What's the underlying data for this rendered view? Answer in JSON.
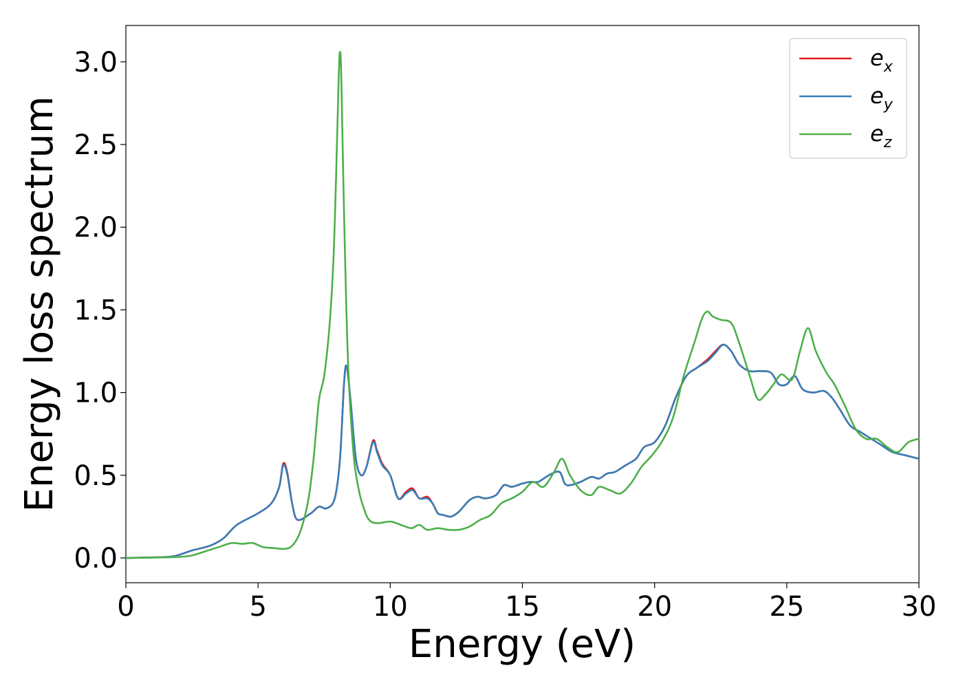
{
  "chart_data": {
    "type": "line",
    "title": "",
    "xlabel": "Energy (eV)",
    "ylabel": "Energy loss spectrum",
    "xlim": [
      0,
      30
    ],
    "ylim": [
      -0.15,
      3.22
    ],
    "xticks": [
      "0",
      "5",
      "10",
      "15",
      "20",
      "25",
      "30"
    ],
    "yticks": [
      "0.0",
      "0.5",
      "1.0",
      "1.5",
      "2.0",
      "2.5",
      "3.0"
    ],
    "grid": false,
    "legend_position": "top-right",
    "series": [
      {
        "name": "e_x",
        "legend_base": "e",
        "legend_sub": "x",
        "color": "#e41a1c",
        "x": [
          0,
          1,
          1.8,
          2.5,
          3.2,
          3.7,
          4.2,
          5,
          5.5,
          5.8,
          5.95,
          6.1,
          6.3,
          6.5,
          7,
          7.3,
          7.6,
          7.9,
          8.1,
          8.25,
          8.35,
          8.5,
          8.7,
          8.9,
          9.1,
          9.35,
          9.5,
          9.7,
          10,
          10.3,
          10.6,
          10.85,
          11.1,
          11.4,
          11.6,
          11.8,
          12,
          12.3,
          12.6,
          13,
          13.3,
          13.6,
          14,
          14.3,
          14.6,
          15,
          15.3,
          15.6,
          16,
          16.4,
          16.6,
          16.8,
          17.2,
          17.6,
          17.9,
          18.2,
          18.5,
          18.9,
          19.3,
          19.6,
          20,
          20.4,
          20.8,
          21.2,
          21.6,
          22,
          22.3,
          22.6,
          22.9,
          23.2,
          23.6,
          24,
          24.4,
          24.7,
          25,
          25.3,
          25.6,
          26,
          26.4,
          26.7,
          27,
          27.4,
          27.8,
          28.2,
          28.6,
          29,
          29.5,
          30
        ],
        "y": [
          0,
          0.003,
          0.01,
          0.045,
          0.075,
          0.12,
          0.2,
          0.27,
          0.33,
          0.43,
          0.57,
          0.52,
          0.32,
          0.23,
          0.27,
          0.31,
          0.3,
          0.36,
          0.6,
          1.05,
          1.16,
          0.95,
          0.6,
          0.5,
          0.55,
          0.71,
          0.65,
          0.57,
          0.5,
          0.36,
          0.4,
          0.42,
          0.36,
          0.37,
          0.33,
          0.27,
          0.26,
          0.25,
          0.28,
          0.35,
          0.37,
          0.36,
          0.38,
          0.44,
          0.43,
          0.45,
          0.46,
          0.46,
          0.5,
          0.52,
          0.45,
          0.44,
          0.46,
          0.49,
          0.48,
          0.51,
          0.52,
          0.56,
          0.6,
          0.67,
          0.7,
          0.8,
          0.97,
          1.1,
          1.15,
          1.2,
          1.25,
          1.29,
          1.25,
          1.17,
          1.13,
          1.13,
          1.12,
          1.05,
          1.05,
          1.1,
          1.02,
          1.0,
          1.01,
          0.97,
          0.9,
          0.8,
          0.76,
          0.72,
          0.68,
          0.64,
          0.62,
          0.6
        ]
      },
      {
        "name": "e_y",
        "legend_base": "e",
        "legend_sub": "y",
        "color": "#377eb8",
        "x": [
          0,
          1,
          1.8,
          2.5,
          3.2,
          3.7,
          4.2,
          5,
          5.5,
          5.8,
          5.95,
          6.1,
          6.3,
          6.5,
          7,
          7.3,
          7.6,
          7.9,
          8.1,
          8.25,
          8.35,
          8.5,
          8.7,
          8.9,
          9.1,
          9.35,
          9.5,
          9.7,
          10,
          10.3,
          10.6,
          10.85,
          11.1,
          11.4,
          11.6,
          11.8,
          12,
          12.3,
          12.6,
          13,
          13.3,
          13.6,
          14,
          14.3,
          14.6,
          15,
          15.3,
          15.6,
          16,
          16.4,
          16.6,
          16.8,
          17.2,
          17.6,
          17.9,
          18.2,
          18.5,
          18.9,
          19.3,
          19.6,
          20,
          20.4,
          20.8,
          21.2,
          21.6,
          22,
          22.3,
          22.6,
          22.9,
          23.2,
          23.6,
          24,
          24.4,
          24.7,
          25,
          25.3,
          25.6,
          26,
          26.4,
          26.7,
          27,
          27.4,
          27.8,
          28.2,
          28.6,
          29,
          29.5,
          30
        ],
        "y": [
          0,
          0.003,
          0.01,
          0.045,
          0.075,
          0.12,
          0.2,
          0.27,
          0.33,
          0.43,
          0.56,
          0.51,
          0.32,
          0.23,
          0.27,
          0.31,
          0.3,
          0.36,
          0.6,
          1.05,
          1.16,
          0.95,
          0.6,
          0.5,
          0.55,
          0.7,
          0.64,
          0.56,
          0.5,
          0.36,
          0.39,
          0.41,
          0.36,
          0.36,
          0.33,
          0.27,
          0.26,
          0.25,
          0.28,
          0.35,
          0.37,
          0.36,
          0.38,
          0.44,
          0.43,
          0.45,
          0.46,
          0.46,
          0.5,
          0.52,
          0.45,
          0.44,
          0.46,
          0.49,
          0.48,
          0.51,
          0.52,
          0.56,
          0.6,
          0.67,
          0.7,
          0.8,
          0.97,
          1.1,
          1.15,
          1.19,
          1.24,
          1.29,
          1.25,
          1.17,
          1.13,
          1.13,
          1.12,
          1.05,
          1.05,
          1.1,
          1.02,
          1.0,
          1.01,
          0.97,
          0.9,
          0.8,
          0.76,
          0.72,
          0.68,
          0.64,
          0.62,
          0.6
        ]
      },
      {
        "name": "e_z",
        "legend_base": "e",
        "legend_sub": "z",
        "color": "#4daf4a",
        "x": [
          0,
          1,
          2,
          2.5,
          3,
          3.5,
          4,
          4.4,
          4.8,
          5.2,
          5.6,
          6,
          6.3,
          6.6,
          6.9,
          7.1,
          7.3,
          7.5,
          7.7,
          7.85,
          7.95,
          8.05,
          8.1,
          8.15,
          8.25,
          8.4,
          8.6,
          8.8,
          9,
          9.2,
          9.5,
          10,
          10.4,
          10.8,
          11.1,
          11.4,
          11.8,
          12.2,
          12.6,
          13,
          13.4,
          13.8,
          14.2,
          14.6,
          15,
          15.4,
          15.8,
          16.2,
          16.5,
          16.8,
          17.2,
          17.6,
          17.9,
          18.3,
          18.7,
          19.1,
          19.5,
          19.9,
          20.3,
          20.7,
          21.1,
          21.5,
          21.8,
          22,
          22.2,
          22.5,
          22.9,
          23.2,
          23.6,
          23.9,
          24.2,
          24.5,
          24.8,
          25.2,
          25.5,
          25.8,
          26.1,
          26.5,
          26.8,
          27.2,
          27.6,
          28,
          28.4,
          28.8,
          29.2,
          29.6,
          30
        ],
        "y": [
          0,
          0.002,
          0.006,
          0.015,
          0.04,
          0.065,
          0.09,
          0.085,
          0.09,
          0.065,
          0.06,
          0.055,
          0.075,
          0.16,
          0.35,
          0.6,
          0.95,
          1.1,
          1.4,
          1.8,
          2.3,
          2.9,
          3.06,
          2.9,
          2.1,
          1.2,
          0.65,
          0.42,
          0.3,
          0.23,
          0.21,
          0.22,
          0.2,
          0.18,
          0.2,
          0.17,
          0.18,
          0.17,
          0.17,
          0.19,
          0.23,
          0.26,
          0.33,
          0.36,
          0.4,
          0.46,
          0.43,
          0.52,
          0.6,
          0.5,
          0.41,
          0.38,
          0.43,
          0.41,
          0.39,
          0.45,
          0.55,
          0.62,
          0.71,
          0.85,
          1.1,
          1.3,
          1.45,
          1.49,
          1.46,
          1.44,
          1.42,
          1.3,
          1.1,
          0.96,
          0.99,
          1.05,
          1.11,
          1.08,
          1.25,
          1.39,
          1.25,
          1.12,
          1.05,
          0.92,
          0.78,
          0.72,
          0.72,
          0.67,
          0.64,
          0.7,
          0.72
        ]
      }
    ]
  }
}
